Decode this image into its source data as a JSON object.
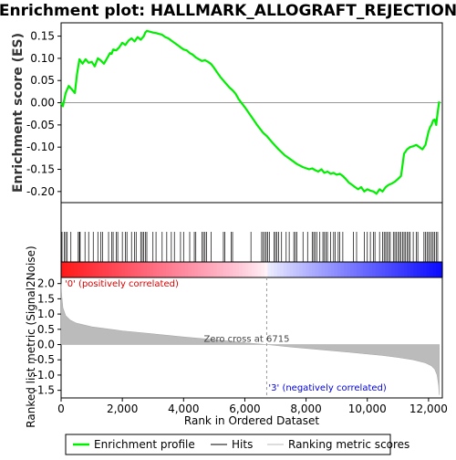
{
  "chart_data": {
    "type": "line",
    "title": "Enrichment plot: HALLMARK_ALLOGRAFT_REJECTION",
    "top_panel": {
      "ylabel": "Enrichment score (ES)",
      "ylim": [
        -0.225,
        0.18
      ],
      "yticks": [
        0.15,
        0.1,
        0.05,
        0.0,
        -0.05,
        -0.1,
        -0.15,
        -0.2
      ],
      "ytick_labels": [
        "0.15",
        "0.10",
        "0.05",
        "0.00",
        "-0.05",
        "-0.10",
        "-0.15",
        "-0.20"
      ],
      "series": [
        {
          "name": "Enrichment profile",
          "color": "#00ee00",
          "x": [
            0,
            60,
            150,
            250,
            350,
            450,
            520,
            600,
            700,
            800,
            900,
            1000,
            1100,
            1200,
            1300,
            1400,
            1500,
            1600,
            1650,
            1700,
            1800,
            1900,
            2000,
            2100,
            2200,
            2300,
            2400,
            2500,
            2600,
            2700,
            2750,
            2800,
            2900,
            3000,
            3100,
            3200,
            3300,
            3400,
            3500,
            3600,
            3700,
            3800,
            3900,
            4000,
            4100,
            4200,
            4300,
            4400,
            4500,
            4600,
            4700,
            4800,
            4900,
            5000,
            5100,
            5200,
            5300,
            5400,
            5500,
            5600,
            5700,
            5800,
            6000,
            6200,
            6400,
            6600,
            6715,
            6900,
            7100,
            7300,
            7500,
            7700,
            7900,
            8100,
            8200,
            8300,
            8400,
            8500,
            8600,
            8700,
            8800,
            8900,
            9000,
            9100,
            9200,
            9300,
            9400,
            9500,
            9600,
            9700,
            9800,
            9900,
            10000,
            10100,
            10200,
            10300,
            10400,
            10500,
            10600,
            10700,
            10800,
            10900,
            11000,
            11100,
            11150,
            11200,
            11300,
            11400,
            11500,
            11600,
            11700,
            11800,
            11900,
            11950,
            12000,
            12050,
            12100,
            12150,
            12200,
            12250,
            12300,
            12350
          ],
          "values": [
            0.0,
            -0.008,
            0.022,
            0.038,
            0.03,
            0.022,
            0.065,
            0.098,
            0.088,
            0.098,
            0.09,
            0.092,
            0.082,
            0.1,
            0.095,
            0.088,
            0.1,
            0.112,
            0.11,
            0.12,
            0.118,
            0.125,
            0.135,
            0.13,
            0.14,
            0.145,
            0.138,
            0.148,
            0.142,
            0.15,
            0.158,
            0.162,
            0.16,
            0.158,
            0.157,
            0.155,
            0.153,
            0.148,
            0.145,
            0.14,
            0.135,
            0.13,
            0.125,
            0.12,
            0.118,
            0.112,
            0.108,
            0.102,
            0.098,
            0.094,
            0.096,
            0.092,
            0.087,
            0.078,
            0.068,
            0.058,
            0.05,
            0.042,
            0.034,
            0.028,
            0.02,
            0.008,
            -0.01,
            -0.03,
            -0.05,
            -0.068,
            -0.075,
            -0.09,
            -0.105,
            -0.118,
            -0.128,
            -0.138,
            -0.145,
            -0.15,
            -0.148,
            -0.152,
            -0.155,
            -0.15,
            -0.158,
            -0.155,
            -0.16,
            -0.158,
            -0.162,
            -0.16,
            -0.165,
            -0.172,
            -0.18,
            -0.185,
            -0.19,
            -0.195,
            -0.19,
            -0.2,
            -0.195,
            -0.198,
            -0.2,
            -0.205,
            -0.195,
            -0.2,
            -0.19,
            -0.185,
            -0.182,
            -0.178,
            -0.172,
            -0.165,
            -0.14,
            -0.115,
            -0.105,
            -0.1,
            -0.098,
            -0.095,
            -0.1,
            -0.105,
            -0.095,
            -0.08,
            -0.065,
            -0.055,
            -0.05,
            -0.04,
            -0.038,
            -0.05,
            -0.02,
            0.003
          ]
        }
      ]
    },
    "hits": [
      30,
      100,
      150,
      200,
      320,
      560,
      600,
      620,
      780,
      900,
      1050,
      1200,
      1300,
      1350,
      1550,
      1650,
      1700,
      1800,
      1850,
      2000,
      2100,
      2150,
      2300,
      2400,
      2450,
      2600,
      2650,
      2700,
      2750,
      2800,
      3000,
      3100,
      3300,
      3450,
      3600,
      3700,
      3900,
      4000,
      4200,
      4350,
      4400,
      4600,
      4650,
      4700,
      4750,
      4900,
      5300,
      5350,
      5550,
      5600,
      6200,
      6550,
      6600,
      6650,
      6700,
      6750,
      6800,
      6950,
      7000,
      7050,
      7100,
      7200,
      7350,
      7450,
      7600,
      7650,
      7700,
      7900,
      8050,
      8200,
      8250,
      8300,
      8350,
      8450,
      8550,
      8600,
      8650,
      8700,
      8800,
      8900,
      8950,
      9050,
      9100,
      9200,
      9550,
      9650,
      9900,
      10000,
      10100,
      10200,
      10250,
      10400,
      10500,
      10550,
      10600,
      10650,
      10700,
      10750,
      10850,
      10900,
      10950,
      11000,
      11050,
      11100,
      11150,
      11200,
      11250,
      11300,
      11350,
      11400,
      11500,
      11600,
      11650,
      11850,
      11900,
      11950,
      12000,
      12050,
      12100,
      12150,
      12200,
      12250,
      12300
    ],
    "bottom_panel": {
      "ylabel": "Ranked list metric (Signal2Noise)",
      "xlabel": "Rank in Ordered Dataset",
      "xlim": [
        0,
        12450
      ],
      "ylim": [
        -1.75,
        2.2
      ],
      "xticks": [
        0,
        2000,
        4000,
        6000,
        8000,
        10000,
        12000
      ],
      "xtick_labels": [
        "0",
        "2,000",
        "4,000",
        "6,000",
        "8,000",
        "10,000",
        "12,000"
      ],
      "yticks": [
        2.0,
        1.5,
        1.0,
        0.5,
        0.0,
        -0.5,
        -1.0,
        -1.5
      ],
      "ytick_labels": [
        "2.0",
        "1.5",
        "1.0",
        "0.5",
        "0.0",
        "-0.5",
        "-1.0",
        "-1.5"
      ],
      "metric_x": [
        0,
        20,
        60,
        150,
        300,
        500,
        1000,
        2000,
        3000,
        4000,
        5000,
        6000,
        6715,
        7500,
        8500,
        9500,
        10500,
        11000,
        11500,
        11900,
        12100,
        12200,
        12280,
        12330,
        12350
      ],
      "metric_y": [
        2.0,
        1.6,
        1.2,
        0.95,
        0.8,
        0.7,
        0.58,
        0.45,
        0.35,
        0.25,
        0.16,
        0.06,
        0.0,
        -0.08,
        -0.17,
        -0.26,
        -0.36,
        -0.42,
        -0.5,
        -0.6,
        -0.7,
        -0.8,
        -1.0,
        -1.35,
        -1.65
      ],
      "zero_cross_rank": 6715,
      "zero_cross_label": "Zero cross at 6715",
      "positive_label": "'0' (positively correlated)",
      "negative_label": "'3' (negatively correlated)",
      "positive_color": "#dd0000",
      "negative_color": "#0000dd"
    },
    "legend": {
      "placement": "bottom",
      "items": [
        {
          "label": "Enrichment profile",
          "color": "#00ee00"
        },
        {
          "label": "Hits",
          "color": "#000000"
        },
        {
          "label": "Ranking metric scores",
          "color": "#bbbbbb"
        }
      ]
    }
  }
}
